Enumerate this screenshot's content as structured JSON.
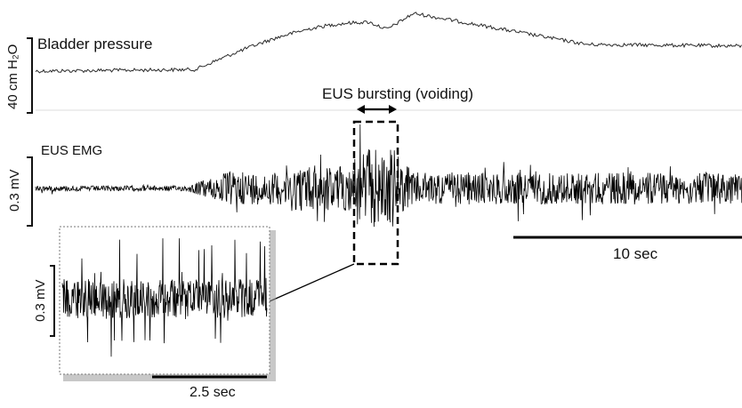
{
  "bladder": {
    "label": "Bladder pressure",
    "scale_label": "40 cm H₂O"
  },
  "emg": {
    "label": "EUS EMG",
    "scale_label": "0.3 mV"
  },
  "bursting": {
    "label": "EUS bursting (voiding)"
  },
  "time_scale": {
    "label": "10 sec"
  },
  "inset": {
    "scale_label": "0.3 mV",
    "time_label": "2.5 sec"
  }
}
